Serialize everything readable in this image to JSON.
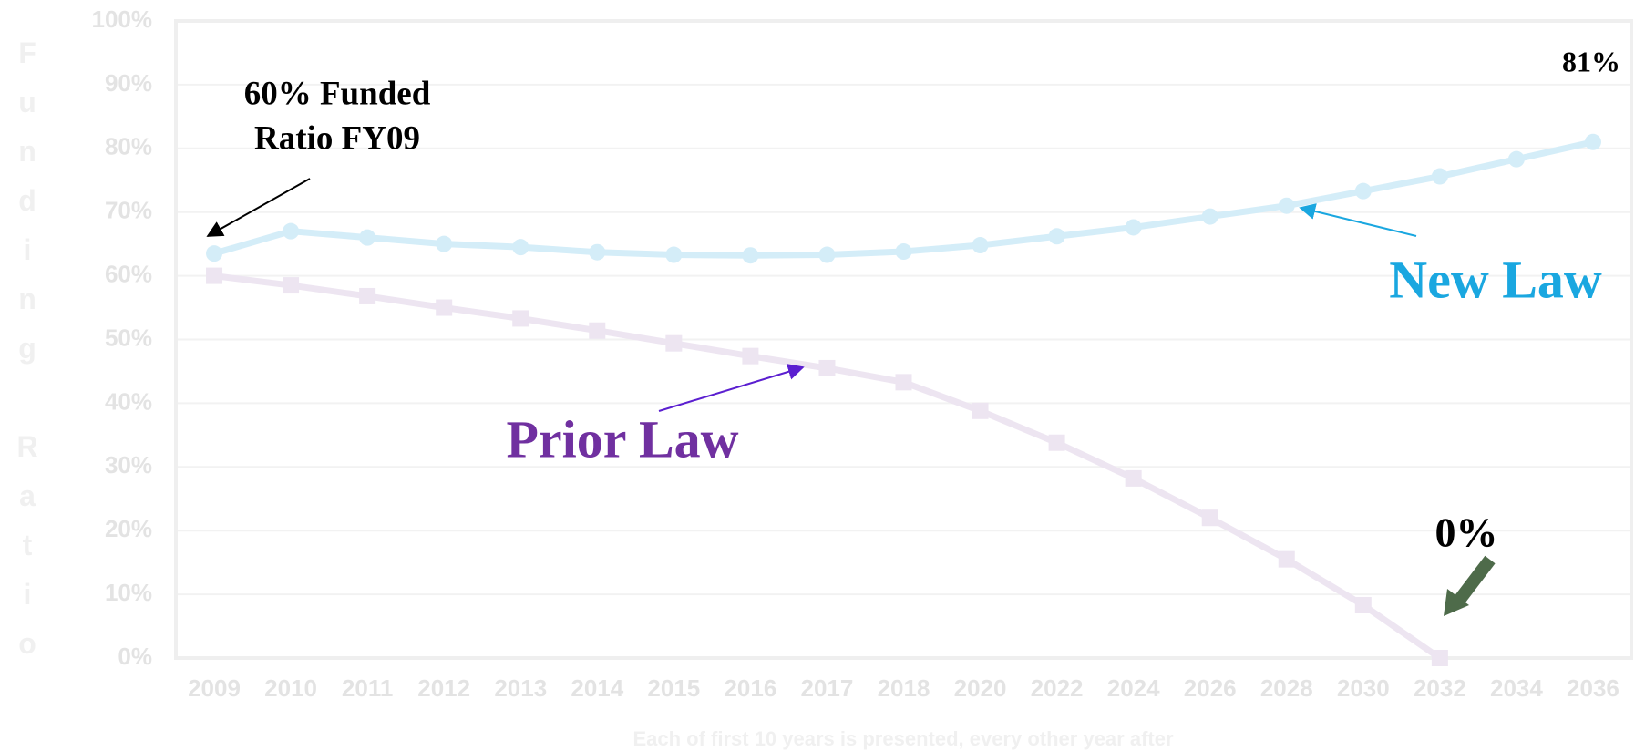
{
  "chart_data": {
    "type": "line",
    "x_label": "Each of first 10 years is presented, every other year after",
    "y_label": "Funding Ratio",
    "categories": [
      "2009",
      "2010",
      "2011",
      "2012",
      "2013",
      "2014",
      "2015",
      "2016",
      "2017",
      "2018",
      "2020",
      "2022",
      "2024",
      "2026",
      "2028",
      "2030",
      "2032",
      "2034",
      "2036"
    ],
    "series": [
      {
        "name": "New Law",
        "color": "#d4edf8",
        "label_color": "#1aa7e0",
        "marker": "circle",
        "values": [
          63.5,
          67,
          66,
          65,
          64.5,
          63.7,
          63.3,
          63.2,
          63.3,
          63.8,
          64.8,
          66.2,
          67.6,
          69.3,
          71,
          73.3,
          75.6,
          78.3,
          81
        ]
      },
      {
        "name": "Prior Law",
        "color": "#ede5f1",
        "label_color": "#7030a0",
        "marker": "square",
        "values": [
          60,
          58.5,
          56.8,
          55,
          53.3,
          51.4,
          49.4,
          47.4,
          45.5,
          43.3,
          38.8,
          33.8,
          28.2,
          22,
          15.5,
          8.3,
          0,
          null,
          null
        ]
      }
    ],
    "ylim": [
      0,
      100
    ],
    "yticks": [
      {
        "value": 0,
        "label": "0%"
      },
      {
        "value": 10,
        "label": "10%"
      },
      {
        "value": 20,
        "label": "20%"
      },
      {
        "value": 30,
        "label": "30%"
      },
      {
        "value": 40,
        "label": "40%"
      },
      {
        "value": 50,
        "label": "50%"
      },
      {
        "value": 60,
        "label": "60%"
      },
      {
        "value": 70,
        "label": "70%"
      },
      {
        "value": 80,
        "label": "80%"
      },
      {
        "value": 90,
        "label": "90%"
      },
      {
        "value": 100,
        "label": "100%"
      }
    ],
    "grid": true,
    "annotations": [
      "60% Funded",
      "Ratio FY09",
      "81%",
      "0%"
    ]
  }
}
